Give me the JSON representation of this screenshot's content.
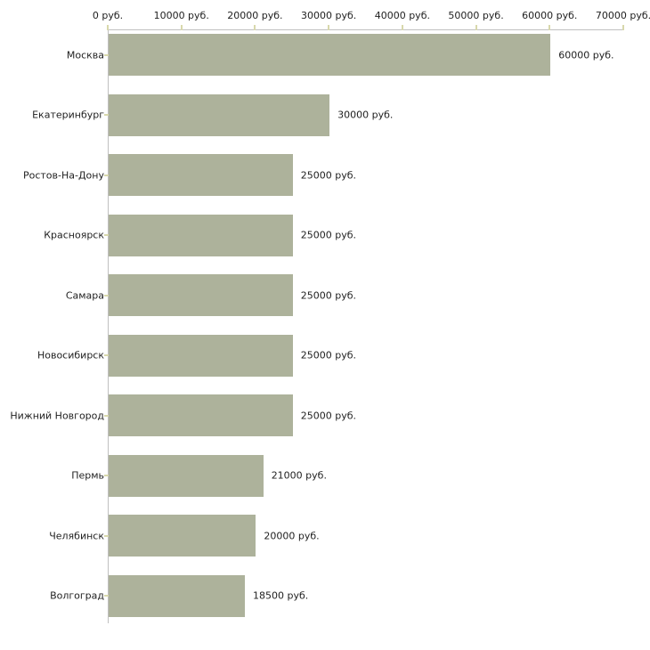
{
  "chart_data": {
    "type": "bar",
    "orientation": "horizontal",
    "title": "",
    "xlabel": "",
    "ylabel": "",
    "categories": [
      "Москва",
      "Екатеринбург",
      "Ростов-На-Дону",
      "Красноярск",
      "Самара",
      "Новосибирск",
      "Нижний Новгород",
      "Пермь",
      "Челябинск",
      "Волгоград"
    ],
    "values": [
      60000,
      30000,
      25000,
      25000,
      25000,
      25000,
      25000,
      21000,
      20000,
      18500
    ],
    "value_labels": [
      "60000 руб.",
      "30000 руб.",
      "25000 руб.",
      "25000 руб.",
      "25000 руб.",
      "25000 руб.",
      "25000 руб.",
      "21000 руб.",
      "20000 руб.",
      "18500 руб."
    ],
    "x_tick_values": [
      0,
      10000,
      20000,
      30000,
      40000,
      50000,
      60000,
      70000
    ],
    "x_tick_labels": [
      "0 руб.",
      "10000 руб.",
      "20000 руб.",
      "30000 руб.",
      "40000 руб.",
      "50000 руб.",
      "60000 руб.",
      "70000 руб."
    ],
    "xlim": [
      0,
      70000
    ],
    "unit": "руб.",
    "grid": false,
    "legend": null,
    "colors": {
      "bar": "#adb29b",
      "axis_line": "#c0c0c0",
      "tick_mark": "#d8d8ac",
      "text": "#1f1f1f",
      "background": "#ffffff"
    }
  }
}
